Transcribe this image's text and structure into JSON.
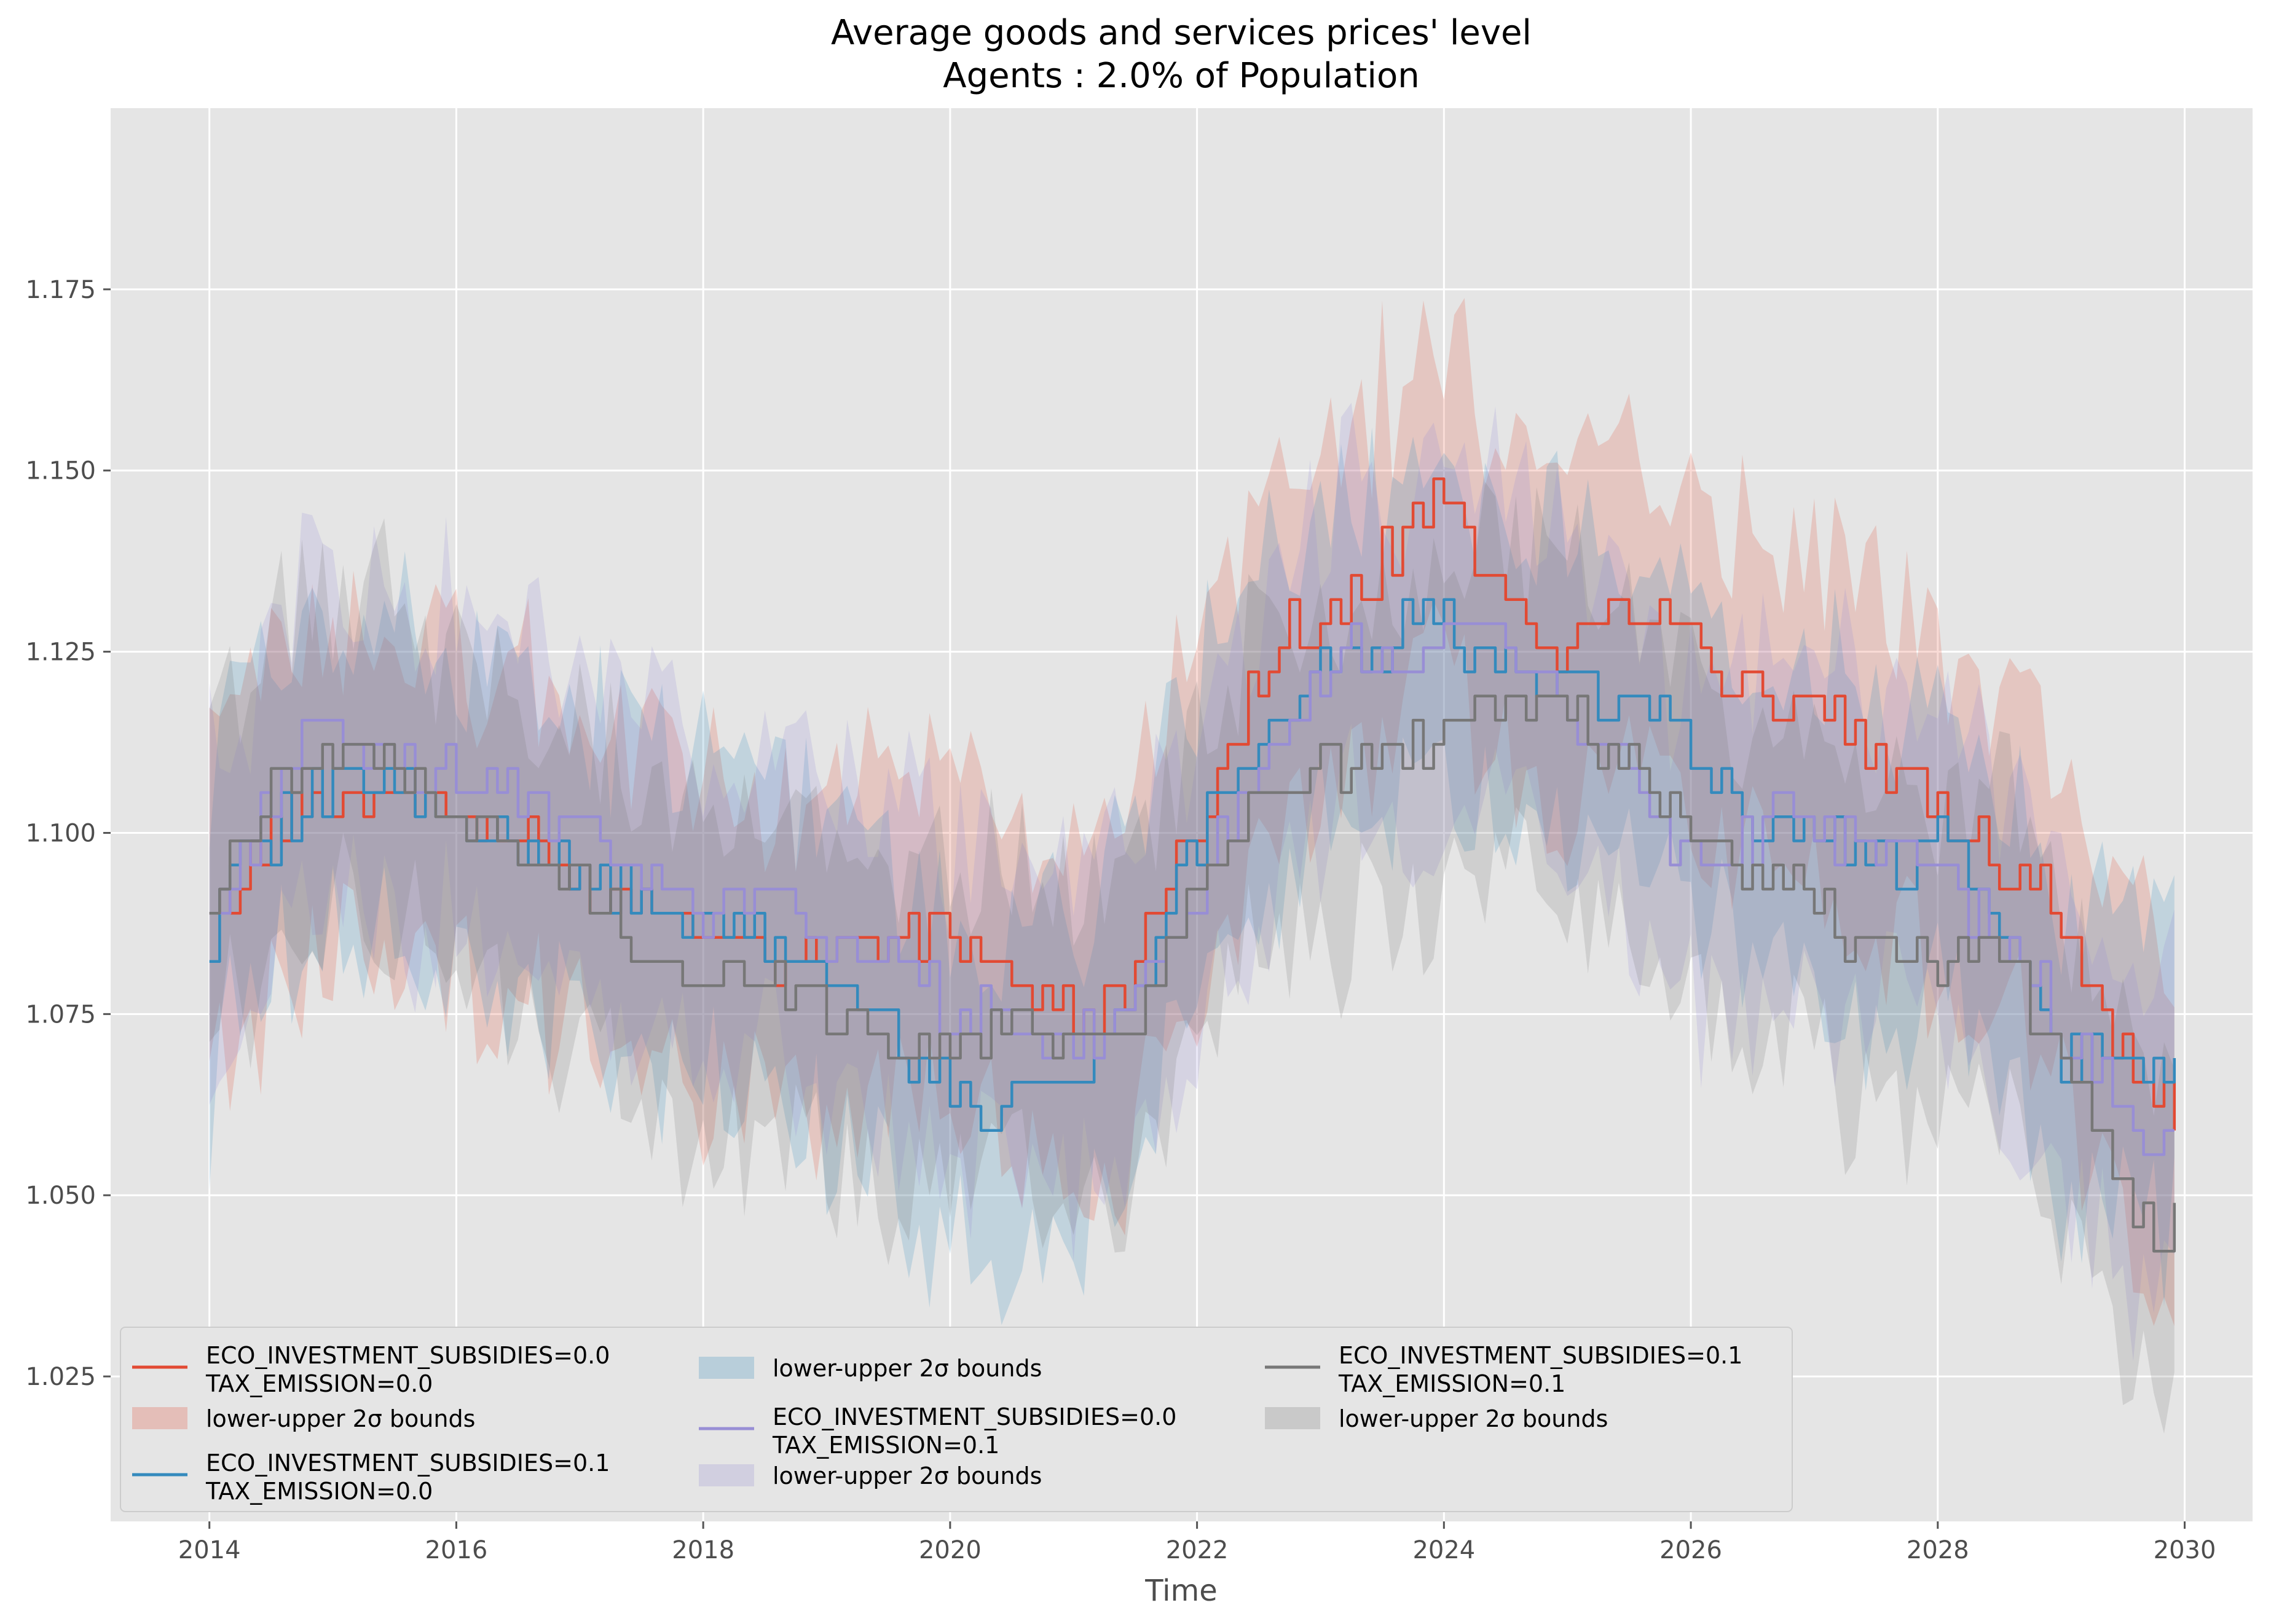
{
  "chart_data": {
    "type": "line",
    "title": "Average goods and services prices' level",
    "subtitle": "Agents : 2.0% of Population",
    "xlabel": "Time",
    "ylabel": "",
    "xlim": [
      2013.2,
      2030.55
    ],
    "ylim": [
      1.005,
      1.2
    ],
    "x_ticks": [
      2014,
      2016,
      2018,
      2020,
      2022,
      2024,
      2026,
      2028,
      2030
    ],
    "x_tick_labels": [
      "2014",
      "2016",
      "2018",
      "2020",
      "2022",
      "2024",
      "2026",
      "2028",
      "2030"
    ],
    "y_ticks": [
      1.025,
      1.05,
      1.075,
      1.1,
      1.125,
      1.15,
      1.175
    ],
    "y_tick_labels": [
      "1.025",
      "1.050",
      "1.075",
      "1.100",
      "1.125",
      "1.150",
      "1.175"
    ],
    "grid": true,
    "legend_position": "lower-left",
    "band_label": "lower-upper 2σ bounds",
    "series": [
      {
        "name": "ECO_INVESTMENT_SUBSIDIES=0.0\nTAX_EMISSION=0.0",
        "name_lines": [
          "ECO_INVESTMENT_SUBSIDIES=0.0",
          "TAX_EMISSION=0.0"
        ],
        "color": "#E24A33",
        "band_spread": 0.022,
        "points": [
          [
            2014.0,
            1.087
          ],
          [
            2014.5,
            1.1
          ],
          [
            2015.0,
            1.105
          ],
          [
            2015.5,
            1.106
          ],
          [
            2016.0,
            1.103
          ],
          [
            2016.5,
            1.099
          ],
          [
            2017.0,
            1.093
          ],
          [
            2017.5,
            1.091
          ],
          [
            2018.0,
            1.088
          ],
          [
            2018.5,
            1.083
          ],
          [
            2019.0,
            1.085
          ],
          [
            2019.5,
            1.085
          ],
          [
            2020.0,
            1.087
          ],
          [
            2020.5,
            1.08
          ],
          [
            2021.0,
            1.073
          ],
          [
            2021.5,
            1.082
          ],
          [
            2022.0,
            1.1
          ],
          [
            2022.25,
            1.115
          ],
          [
            2022.5,
            1.12
          ],
          [
            2022.75,
            1.128
          ],
          [
            2023.0,
            1.128
          ],
          [
            2023.25,
            1.132
          ],
          [
            2023.5,
            1.138
          ],
          [
            2023.75,
            1.143
          ],
          [
            2024.0,
            1.15
          ],
          [
            2024.25,
            1.136
          ],
          [
            2024.5,
            1.132
          ],
          [
            2024.75,
            1.128
          ],
          [
            2025.0,
            1.126
          ],
          [
            2025.25,
            1.13
          ],
          [
            2025.5,
            1.132
          ],
          [
            2025.75,
            1.132
          ],
          [
            2026.0,
            1.13
          ],
          [
            2026.25,
            1.12
          ],
          [
            2026.5,
            1.12
          ],
          [
            2026.75,
            1.117
          ],
          [
            2027.0,
            1.115
          ],
          [
            2027.25,
            1.115
          ],
          [
            2027.5,
            1.11
          ],
          [
            2027.75,
            1.105
          ],
          [
            2028.0,
            1.103
          ],
          [
            2028.25,
            1.1
          ],
          [
            2028.5,
            1.095
          ],
          [
            2028.75,
            1.095
          ],
          [
            2029.0,
            1.09
          ],
          [
            2029.25,
            1.075
          ],
          [
            2029.5,
            1.07
          ],
          [
            2029.75,
            1.063
          ],
          [
            2029.92,
            1.06
          ]
        ]
      },
      {
        "name": "ECO_INVESTMENT_SUBSIDIES=0.1\nTAX_EMISSION=0.0",
        "name_lines": [
          "ECO_INVESTMENT_SUBSIDIES=0.1",
          "TAX_EMISSION=0.0"
        ],
        "color": "#348ABD",
        "band_spread": 0.022,
        "points": [
          [
            2014.0,
            1.087
          ],
          [
            2014.25,
            1.1
          ],
          [
            2014.5,
            1.1
          ],
          [
            2015.0,
            1.107
          ],
          [
            2015.5,
            1.106
          ],
          [
            2016.0,
            1.1
          ],
          [
            2016.5,
            1.099
          ],
          [
            2017.0,
            1.095
          ],
          [
            2017.5,
            1.09
          ],
          [
            2018.0,
            1.088
          ],
          [
            2018.5,
            1.085
          ],
          [
            2019.0,
            1.08
          ],
          [
            2019.5,
            1.073
          ],
          [
            2020.0,
            1.065
          ],
          [
            2020.3,
            1.062
          ],
          [
            2020.5,
            1.065
          ],
          [
            2021.0,
            1.065
          ],
          [
            2021.5,
            1.08
          ],
          [
            2022.0,
            1.1
          ],
          [
            2022.25,
            1.108
          ],
          [
            2022.5,
            1.112
          ],
          [
            2022.75,
            1.118
          ],
          [
            2023.0,
            1.122
          ],
          [
            2023.25,
            1.123
          ],
          [
            2023.5,
            1.125
          ],
          [
            2023.75,
            1.13
          ],
          [
            2024.0,
            1.128
          ],
          [
            2024.25,
            1.124
          ],
          [
            2024.5,
            1.124
          ],
          [
            2024.75,
            1.122
          ],
          [
            2025.0,
            1.12
          ],
          [
            2025.25,
            1.118
          ],
          [
            2025.5,
            1.118
          ],
          [
            2025.75,
            1.117
          ],
          [
            2026.0,
            1.11
          ],
          [
            2026.25,
            1.108
          ],
          [
            2026.5,
            1.1
          ],
          [
            2026.75,
            1.1
          ],
          [
            2027.0,
            1.1
          ],
          [
            2027.25,
            1.098
          ],
          [
            2027.5,
            1.097
          ],
          [
            2027.75,
            1.095
          ],
          [
            2028.0,
            1.1
          ],
          [
            2028.25,
            1.095
          ],
          [
            2028.5,
            1.085
          ],
          [
            2028.75,
            1.08
          ],
          [
            2029.0,
            1.07
          ],
          [
            2029.25,
            1.07
          ],
          [
            2029.5,
            1.065
          ],
          [
            2029.75,
            1.067
          ],
          [
            2029.92,
            1.07
          ]
        ]
      },
      {
        "name": "ECO_INVESTMENT_SUBSIDIES=0.0\nTAX_EMISSION=0.1",
        "name_lines": [
          "ECO_INVESTMENT_SUBSIDIES=0.0",
          "TAX_EMISSION=0.1"
        ],
        "color": "#988ED5",
        "band_spread": 0.022,
        "points": [
          [
            2014.0,
            1.087
          ],
          [
            2014.5,
            1.105
          ],
          [
            2014.75,
            1.115
          ],
          [
            2015.0,
            1.113
          ],
          [
            2015.5,
            1.11
          ],
          [
            2016.0,
            1.108
          ],
          [
            2016.5,
            1.105
          ],
          [
            2017.0,
            1.1
          ],
          [
            2017.5,
            1.093
          ],
          [
            2018.0,
            1.09
          ],
          [
            2018.5,
            1.092
          ],
          [
            2019.0,
            1.085
          ],
          [
            2019.5,
            1.083
          ],
          [
            2020.0,
            1.075
          ],
          [
            2020.5,
            1.073
          ],
          [
            2021.0,
            1.07
          ],
          [
            2021.5,
            1.077
          ],
          [
            2022.0,
            1.093
          ],
          [
            2022.25,
            1.1
          ],
          [
            2022.5,
            1.108
          ],
          [
            2022.75,
            1.113
          ],
          [
            2023.0,
            1.12
          ],
          [
            2023.25,
            1.125
          ],
          [
            2023.5,
            1.126
          ],
          [
            2023.75,
            1.125
          ],
          [
            2024.0,
            1.125
          ],
          [
            2024.25,
            1.128
          ],
          [
            2024.5,
            1.126
          ],
          [
            2024.75,
            1.122
          ],
          [
            2025.0,
            1.117
          ],
          [
            2025.25,
            1.113
          ],
          [
            2025.5,
            1.108
          ],
          [
            2025.75,
            1.1
          ],
          [
            2026.0,
            1.098
          ],
          [
            2026.25,
            1.096
          ],
          [
            2026.5,
            1.098
          ],
          [
            2026.75,
            1.105
          ],
          [
            2027.0,
            1.1
          ],
          [
            2027.25,
            1.098
          ],
          [
            2027.5,
            1.095
          ],
          [
            2027.75,
            1.098
          ],
          [
            2028.0,
            1.095
          ],
          [
            2028.25,
            1.09
          ],
          [
            2028.5,
            1.085
          ],
          [
            2028.75,
            1.08
          ],
          [
            2029.0,
            1.072
          ],
          [
            2029.25,
            1.067
          ],
          [
            2029.5,
            1.063
          ],
          [
            2029.75,
            1.057
          ],
          [
            2029.92,
            1.057
          ]
        ]
      },
      {
        "name": "ECO_INVESTMENT_SUBSIDIES=0.1\nTAX_EMISSION=0.1",
        "name_lines": [
          "ECO_INVESTMENT_SUBSIDIES=0.1",
          "TAX_EMISSION=0.1"
        ],
        "color": "#777777",
        "band_spread": 0.022,
        "points": [
          [
            2014.0,
            1.09
          ],
          [
            2014.5,
            1.107
          ],
          [
            2014.75,
            1.11
          ],
          [
            2015.0,
            1.112
          ],
          [
            2015.5,
            1.11
          ],
          [
            2016.0,
            1.103
          ],
          [
            2016.5,
            1.097
          ],
          [
            2017.0,
            1.092
          ],
          [
            2017.5,
            1.085
          ],
          [
            2018.0,
            1.078
          ],
          [
            2018.5,
            1.083
          ],
          [
            2019.0,
            1.075
          ],
          [
            2019.5,
            1.072
          ],
          [
            2020.0,
            1.07
          ],
          [
            2020.5,
            1.073
          ],
          [
            2021.0,
            1.072
          ],
          [
            2021.5,
            1.075
          ],
          [
            2022.0,
            1.093
          ],
          [
            2022.25,
            1.1
          ],
          [
            2022.5,
            1.103
          ],
          [
            2022.75,
            1.106
          ],
          [
            2023.0,
            1.11
          ],
          [
            2023.25,
            1.108
          ],
          [
            2023.5,
            1.112
          ],
          [
            2023.75,
            1.113
          ],
          [
            2024.0,
            1.113
          ],
          [
            2024.25,
            1.12
          ],
          [
            2024.5,
            1.12
          ],
          [
            2024.75,
            1.117
          ],
          [
            2025.0,
            1.115
          ],
          [
            2025.25,
            1.112
          ],
          [
            2025.5,
            1.108
          ],
          [
            2025.75,
            1.104
          ],
          [
            2026.0,
            1.1
          ],
          [
            2026.25,
            1.097
          ],
          [
            2026.5,
            1.093
          ],
          [
            2026.75,
            1.095
          ],
          [
            2027.0,
            1.092
          ],
          [
            2027.25,
            1.085
          ],
          [
            2027.5,
            1.082
          ],
          [
            2027.75,
            1.082
          ],
          [
            2028.0,
            1.083
          ],
          [
            2028.25,
            1.085
          ],
          [
            2028.5,
            1.085
          ],
          [
            2028.75,
            1.075
          ],
          [
            2029.0,
            1.068
          ],
          [
            2029.25,
            1.06
          ],
          [
            2029.5,
            1.048
          ],
          [
            2029.75,
            1.045
          ],
          [
            2029.92,
            1.047
          ]
        ]
      }
    ]
  }
}
